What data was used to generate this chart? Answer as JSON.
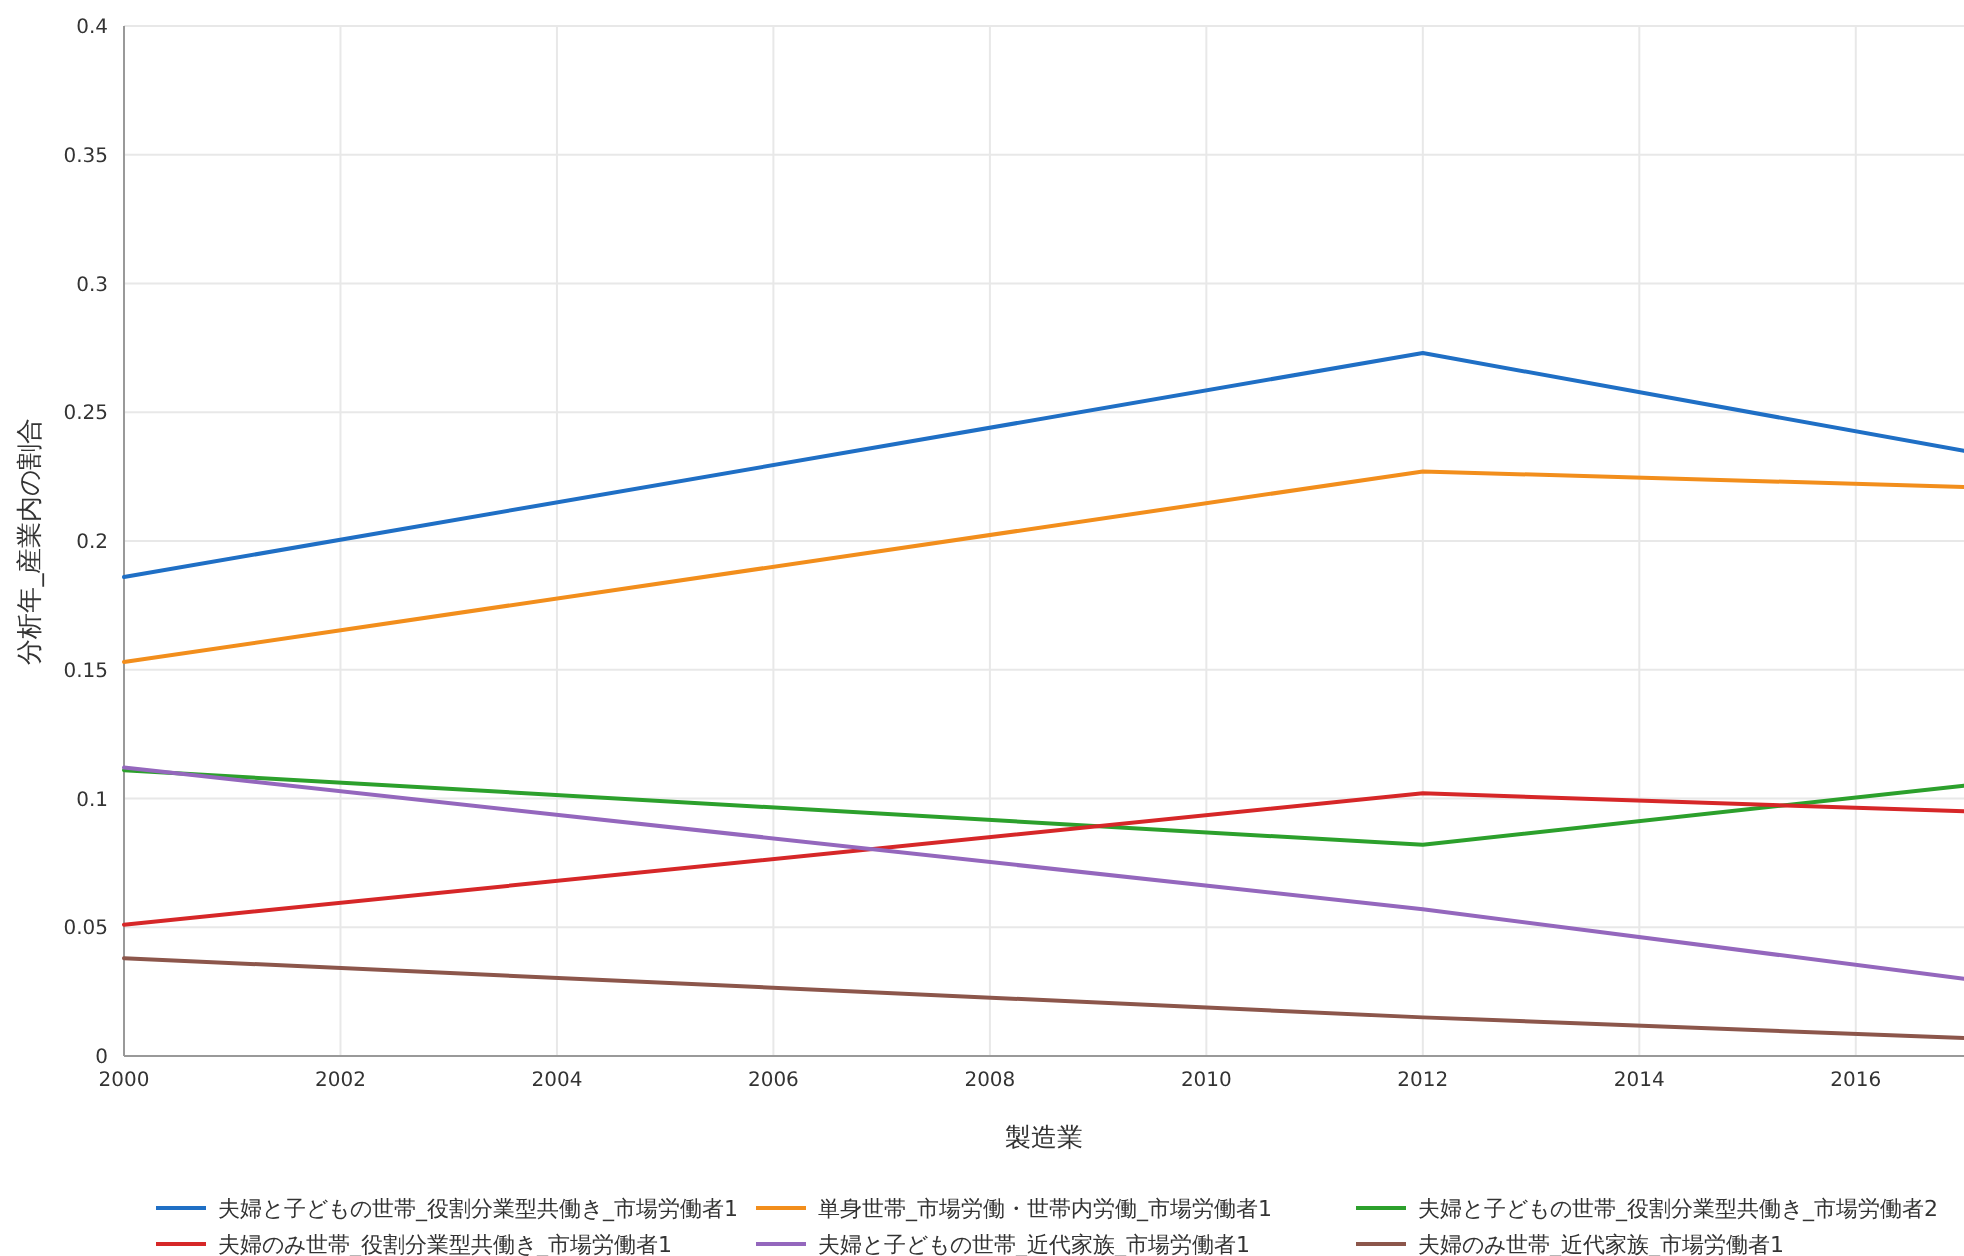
{
  "chart_data": {
    "type": "line",
    "xlabel": "製造業",
    "ylabel": "分析年_産業内の割合",
    "x": [
      2000,
      2012,
      2017
    ],
    "series": [
      {
        "name": "夫婦と子どもの世帯_役割分業型共働き_市場労働者1",
        "color": "#1f6fc5",
        "values": [
          0.186,
          0.273,
          0.235
        ]
      },
      {
        "name": "単身世帯_市場労働・世帯内労働_市場労働者1",
        "color": "#f28e1c",
        "values": [
          0.153,
          0.227,
          0.221
        ]
      },
      {
        "name": "夫婦と子どもの世帯_役割分業型共働き_市場労働者2",
        "color": "#2ca02c",
        "values": [
          0.111,
          0.082,
          0.105
        ]
      },
      {
        "name": "夫婦のみ世帯_役割分業型共働き_市場労働者1",
        "color": "#d62728",
        "values": [
          0.051,
          0.102,
          0.095
        ]
      },
      {
        "name": "夫婦と子どもの世帯_近代家族_市場労働者1",
        "color": "#9467bd",
        "values": [
          0.112,
          0.057,
          0.03
        ]
      },
      {
        "name": "夫婦のみ世帯_近代家族_市場労働者1",
        "color": "#8c564b",
        "values": [
          0.038,
          0.015,
          0.007
        ]
      }
    ],
    "xlim": [
      2000,
      2017
    ],
    "ylim": [
      0,
      0.4
    ],
    "xticks": [
      2000,
      2002,
      2004,
      2006,
      2008,
      2010,
      2012,
      2014,
      2016
    ],
    "yticks": [
      0,
      0.05,
      0.1,
      0.15,
      0.2,
      0.25,
      0.3,
      0.35,
      0.4
    ],
    "grid": true,
    "legend": "bottom",
    "line_style": "solid"
  }
}
